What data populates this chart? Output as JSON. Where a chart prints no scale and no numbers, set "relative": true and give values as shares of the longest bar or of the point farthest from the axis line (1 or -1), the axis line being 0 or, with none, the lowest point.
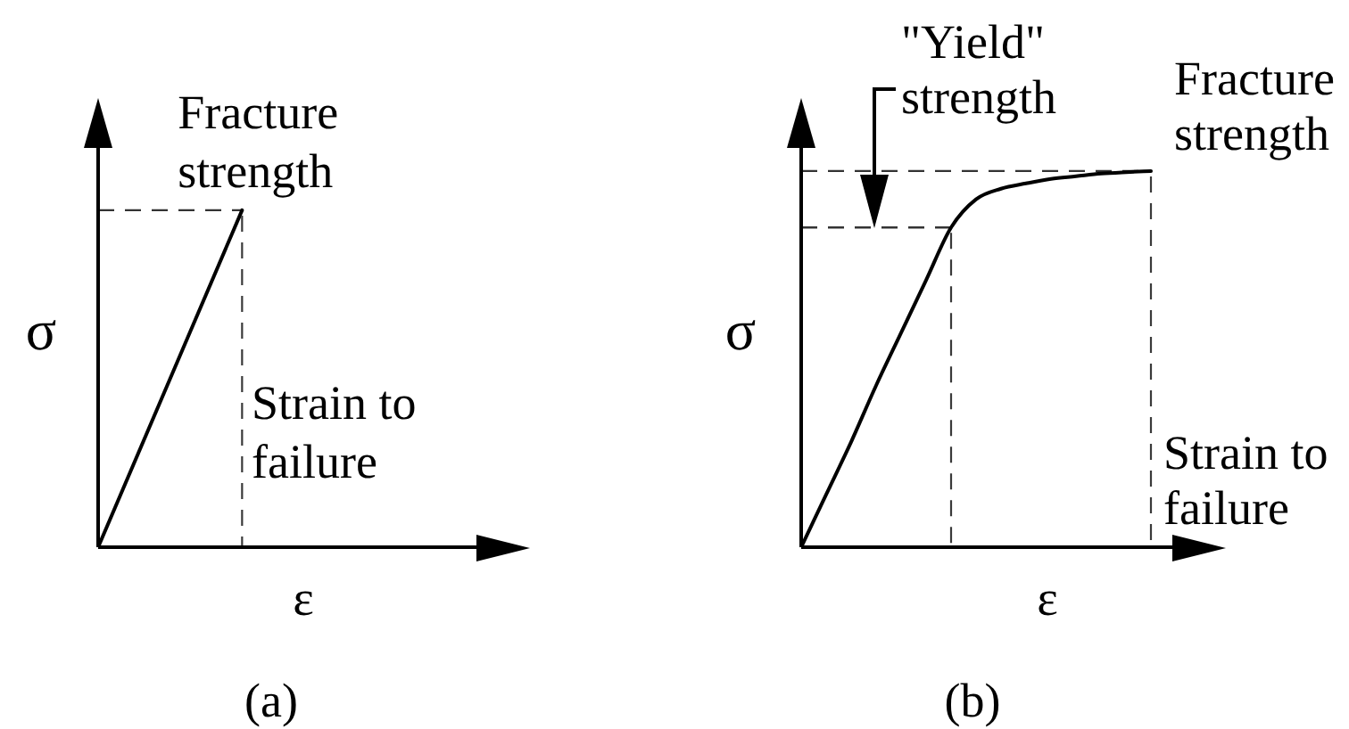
{
  "chart_data": [
    {
      "type": "line",
      "title": "(a)",
      "xlabel": "ε",
      "ylabel": "σ",
      "relative": true,
      "categories": [
        null,
        null,
        null,
        null
      ],
      "values": [
        0,
        1,
        null,
        null
      ],
      "color": "#000000",
      "ref_lines": [
        {
          "axis": "y",
          "value": 1,
          "label": "Fracture strength",
          "line_style": "dashed"
        }
      ],
      "annotations": [
        "Strain to failure"
      ]
    },
    {
      "type": "line",
      "title": "(b)",
      "xlabel": "ε",
      "ylabel": "σ",
      "relative": true,
      "categories": [
        null,
        null,
        null,
        null,
        null,
        null,
        null,
        null,
        null,
        null,
        null,
        null,
        null,
        null,
        null,
        null,
        null,
        null
      ],
      "values": [
        0,
        0.14,
        0.28,
        0.43,
        0.57,
        0.71,
        0.85,
        0.925,
        0.953,
        0.967,
        0.979,
        0.986,
        0.993,
        0.997,
        1,
        null,
        null,
        null
      ],
      "color": "#000000",
      "ref_lines": [
        {
          "axis": "y",
          "value": 0.85,
          "label": "\"Yield\" strength",
          "line_style": "dashed"
        },
        {
          "axis": "y",
          "value": 1,
          "label": "Fracture strength",
          "line_style": "dashed"
        }
      ],
      "annotations": [
        "Strain to failure"
      ]
    }
  ]
}
